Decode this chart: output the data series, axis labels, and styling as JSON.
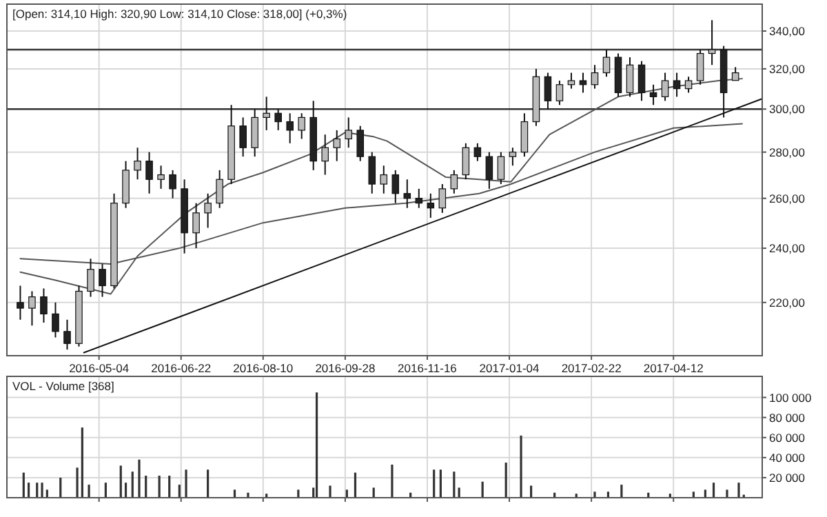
{
  "chart_data": [
    {
      "type": "candlestick",
      "title": "[Open: 314,10 High: 320,90 Low: 314,10 Close: 318,00] (+0,3%)",
      "x": [
        "2016-03-18",
        "2016-03-25",
        "2016-04-01",
        "2016-04-08",
        "2016-04-15",
        "2016-04-22",
        "2016-04-29",
        "2016-05-06",
        "2016-05-13",
        "2016-05-20",
        "2016-05-27",
        "2016-06-03",
        "2016-06-10",
        "2016-06-17",
        "2016-06-24",
        "2016-07-01",
        "2016-07-08",
        "2016-07-15",
        "2016-07-22",
        "2016-07-29",
        "2016-08-05",
        "2016-08-12",
        "2016-08-19",
        "2016-08-26",
        "2016-09-02",
        "2016-09-09",
        "2016-09-16",
        "2016-09-23",
        "2016-09-30",
        "2016-10-07",
        "2016-10-14",
        "2016-10-21",
        "2016-10-28",
        "2016-11-04",
        "2016-11-11",
        "2016-11-18",
        "2016-11-25",
        "2016-12-02",
        "2016-12-09",
        "2016-12-16",
        "2016-12-23",
        "2016-12-30",
        "2017-01-06",
        "2017-01-13",
        "2017-01-20",
        "2017-01-27",
        "2017-02-03",
        "2017-02-10",
        "2017-02-17",
        "2017-02-24",
        "2017-03-03",
        "2017-03-10",
        "2017-03-17",
        "2017-03-24",
        "2017-03-31",
        "2017-04-07",
        "2017-04-14",
        "2017-04-21",
        "2017-04-28",
        "2017-05-05",
        "2017-05-12",
        "2017-05-19"
      ],
      "ohlc": [
        [
          220,
          226,
          214,
          218
        ],
        [
          218,
          224,
          212,
          222
        ],
        [
          222,
          225,
          213,
          216
        ],
        [
          216,
          220,
          208,
          210
        ],
        [
          210,
          214,
          204,
          206
        ],
        [
          206,
          226,
          205,
          224
        ],
        [
          224,
          236,
          222,
          232
        ],
        [
          232,
          234,
          222,
          226
        ],
        [
          226,
          262,
          225,
          258
        ],
        [
          258,
          276,
          256,
          272
        ],
        [
          272,
          282,
          268,
          276
        ],
        [
          276,
          280,
          262,
          268
        ],
        [
          268,
          274,
          264,
          270
        ],
        [
          270,
          272,
          260,
          264
        ],
        [
          264,
          268,
          238,
          246
        ],
        [
          246,
          258,
          240,
          254
        ],
        [
          254,
          262,
          248,
          258
        ],
        [
          258,
          272,
          256,
          268
        ],
        [
          268,
          302,
          266,
          292
        ],
        [
          292,
          296,
          278,
          282
        ],
        [
          282,
          300,
          278,
          296
        ],
        [
          296,
          306,
          290,
          298
        ],
        [
          298,
          300,
          290,
          294
        ],
        [
          294,
          298,
          284,
          290
        ],
        [
          290,
          298,
          286,
          296
        ],
        [
          296,
          304,
          272,
          276
        ],
        [
          276,
          288,
          270,
          282
        ],
        [
          282,
          290,
          276,
          286
        ],
        [
          286,
          296,
          282,
          290
        ],
        [
          290,
          292,
          276,
          278
        ],
        [
          278,
          280,
          262,
          266
        ],
        [
          266,
          274,
          262,
          270
        ],
        [
          270,
          272,
          258,
          262
        ],
        [
          262,
          268,
          256,
          260
        ],
        [
          260,
          264,
          256,
          258
        ],
        [
          258,
          262,
          252,
          256
        ],
        [
          256,
          266,
          254,
          264
        ],
        [
          264,
          272,
          262,
          270
        ],
        [
          270,
          284,
          268,
          282
        ],
        [
          282,
          284,
          276,
          278
        ],
        [
          278,
          280,
          264,
          268
        ],
        [
          268,
          280,
          266,
          278
        ],
        [
          278,
          282,
          274,
          280
        ],
        [
          280,
          298,
          278,
          294
        ],
        [
          294,
          320,
          292,
          316
        ],
        [
          316,
          318,
          300,
          304
        ],
        [
          304,
          314,
          302,
          312
        ],
        [
          312,
          318,
          310,
          314
        ],
        [
          314,
          318,
          308,
          312
        ],
        [
          312,
          322,
          310,
          318
        ],
        [
          318,
          330,
          316,
          326
        ],
        [
          326,
          328,
          306,
          308
        ],
        [
          308,
          326,
          306,
          322
        ],
        [
          322,
          324,
          304,
          308
        ],
        [
          308,
          312,
          302,
          306
        ],
        [
          306,
          318,
          304,
          314
        ],
        [
          314,
          318,
          306,
          310
        ],
        [
          310,
          316,
          308,
          314
        ],
        [
          314,
          330,
          312,
          328
        ],
        [
          328,
          346,
          322,
          330
        ],
        [
          330,
          332,
          296,
          308
        ],
        [
          314.1,
          320.9,
          314.1,
          318
        ]
      ],
      "series": [
        {
          "type": "line",
          "color": "#555555",
          "x": [
            "2016-03-18",
            "2016-05-11",
            "2016-06-21",
            "2016-08-10",
            "2016-09-28",
            "2016-11-03",
            "2016-11-25",
            "2016-12-17",
            "2017-01-05",
            "2017-02-24",
            "2017-04-12",
            "2017-05-23"
          ],
          "values": [
            236,
            234,
            240,
            250,
            256,
            258,
            260,
            262,
            266,
            280,
            291,
            293
          ]
        },
        {
          "type": "line",
          "color": "#555555",
          "x": [
            "2016-03-18",
            "2016-04-08",
            "2016-05-11",
            "2016-05-27",
            "2016-06-25",
            "2016-07-20",
            "2016-08-10",
            "2016-09-07",
            "2016-09-28",
            "2016-10-15",
            "2016-10-23",
            "2016-11-27",
            "2016-12-17",
            "2017-01-05",
            "2017-01-28",
            "2017-03-10",
            "2017-04-12",
            "2017-05-09",
            "2017-05-23"
          ],
          "values": [
            231,
            228,
            223,
            237,
            254,
            266,
            271,
            279,
            289,
            287,
            285,
            269,
            268,
            267,
            288,
            306,
            311,
            314,
            315
          ]
        },
        {
          "type": "line",
          "color": "#111111",
          "x": [
            "2016-04-25",
            "2017-06-04"
          ],
          "values": [
            203,
            305
          ]
        }
      ],
      "ref_lines": [
        {
          "axis": "y",
          "value": 300,
          "color": "#333333"
        },
        {
          "axis": "y",
          "value": 330,
          "color": "#333333"
        }
      ],
      "log": "y",
      "grid": true,
      "xlim": [
        "2016-03-10",
        "2017-06-04"
      ],
      "xticks": [
        "2016-05-04",
        "2016-06-22",
        "2016-08-10",
        "2016-09-28",
        "2016-11-16",
        "2017-01-04",
        "2017-02-22",
        "2017-04-12"
      ],
      "ylim": [
        202,
        355
      ],
      "yticks": [
        {
          "value": 220,
          "label": "220,00"
        },
        {
          "value": 240,
          "label": "240,00"
        },
        {
          "value": 260,
          "label": "260,00"
        },
        {
          "value": 280,
          "label": "280,00"
        },
        {
          "value": 300,
          "label": "300,00"
        },
        {
          "value": 320,
          "label": "320,00"
        },
        {
          "value": 340,
          "label": "340,00"
        }
      ]
    },
    {
      "type": "bar",
      "title": "VOL - Volume [368]",
      "color": "#333333",
      "x": [
        "2016-03-20",
        "2016-03-23",
        "2016-03-28",
        "2016-03-31",
        "2016-04-03",
        "2016-04-11",
        "2016-04-21",
        "2016-04-24",
        "2016-04-28",
        "2016-05-08",
        "2016-05-17",
        "2016-05-20",
        "2016-05-24",
        "2016-05-28",
        "2016-06-01",
        "2016-06-09",
        "2016-06-15",
        "2016-06-21",
        "2016-06-25",
        "2016-07-08",
        "2016-07-24",
        "2016-08-01",
        "2016-08-12",
        "2016-08-31",
        "2016-09-09",
        "2016-09-11",
        "2016-09-19",
        "2016-09-29",
        "2016-10-04",
        "2016-10-15",
        "2016-10-26",
        "2016-11-06",
        "2016-11-20",
        "2016-11-24",
        "2016-12-02",
        "2016-12-05",
        "2016-12-19",
        "2017-01-02",
        "2017-01-11",
        "2017-01-17",
        "2017-01-31",
        "2017-02-13",
        "2017-02-24",
        "2017-03-04",
        "2017-03-12",
        "2017-03-28",
        "2017-04-10",
        "2017-04-24",
        "2017-05-01",
        "2017-05-06",
        "2017-05-14",
        "2017-05-21",
        "2017-05-24"
      ],
      "values": [
        25000,
        15000,
        15000,
        15000,
        8000,
        20000,
        30000,
        70000,
        13000,
        15000,
        32000,
        15000,
        26000,
        38000,
        22000,
        22000,
        22000,
        13000,
        28000,
        28000,
        8000,
        5000,
        4000,
        8000,
        10000,
        105000,
        12000,
        8000,
        25000,
        10000,
        33000,
        5000,
        28000,
        28000,
        26000,
        10000,
        16000,
        35000,
        62000,
        12000,
        5000,
        4000,
        6000,
        6000,
        13000,
        5000,
        4000,
        6000,
        8000,
        15000,
        8000,
        15000,
        3000
      ],
      "grid": true,
      "tick_labels": "y",
      "xlim": [
        "2016-03-10",
        "2017-06-04"
      ],
      "xticks": [
        "2016-05-04",
        "2016-06-22",
        "2016-08-10",
        "2016-09-28",
        "2016-11-16",
        "2017-01-04",
        "2017-02-22",
        "2017-04-12"
      ],
      "ylim": [
        0,
        121000
      ],
      "yticks": [
        {
          "value": 20000,
          "label": "20 000"
        },
        {
          "value": 40000,
          "label": "40 000"
        },
        {
          "value": 60000,
          "label": "60 000"
        },
        {
          "value": 80000,
          "label": "80 000"
        },
        {
          "value": 100000,
          "label": "100 000"
        }
      ]
    }
  ]
}
